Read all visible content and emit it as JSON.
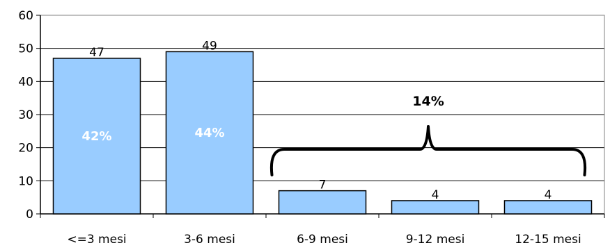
{
  "chart_data": {
    "type": "bar",
    "categories": [
      "<=3 mesi",
      "3-6 mesi",
      "6-9 mesi",
      "9-12 mesi",
      "12-15 mesi"
    ],
    "values": [
      47,
      49,
      7,
      4,
      4
    ],
    "bar_percent_labels": [
      "42%",
      "44%",
      "",
      "",
      ""
    ],
    "group_annotation": {
      "label": "14%",
      "spans_categories": [
        "6-9 mesi",
        "9-12 mesi",
        "12-15 mesi"
      ]
    },
    "title": "",
    "xlabel": "",
    "ylabel": "",
    "ylim": [
      0,
      60
    ],
    "yticks": [
      0,
      10,
      20,
      30,
      40,
      50,
      60
    ],
    "grid": true,
    "legend": "none",
    "colors": {
      "bar_fill": "#99ccff",
      "bar_stroke": "#000000",
      "grid": "#000000"
    }
  }
}
